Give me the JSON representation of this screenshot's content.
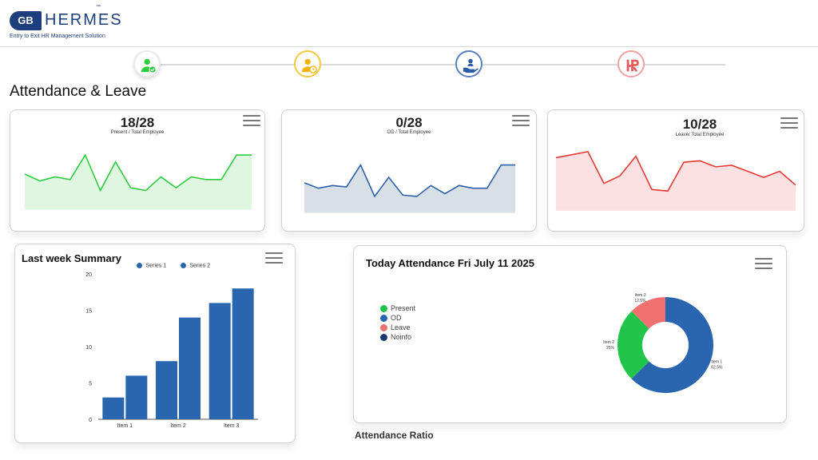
{
  "brand": {
    "logo_badge": "GB",
    "logo_name": "HERMES",
    "trademark": "™",
    "tagline": "Entry to Exit HR Management Solution"
  },
  "stepper": {
    "steps": [
      {
        "icon": "user-check-icon",
        "color": "#2ecc40",
        "active": true
      },
      {
        "icon": "user-clock-icon",
        "color": "#f2c200",
        "active": false
      },
      {
        "icon": "hand-user-icon",
        "color": "#2a5aa8",
        "active": false
      },
      {
        "icon": "hr-logo-icon",
        "color": "#e45c5c",
        "active": false
      }
    ]
  },
  "page_title": "Attendance & Leave",
  "stat_cards": [
    {
      "value": "18/28",
      "label": "Present / Total Employee",
      "color": "#2ecc40",
      "fill": "#dff6e1",
      "series": [
        66,
        61,
        64,
        62,
        80,
        54,
        75,
        56,
        54,
        64,
        56,
        64,
        62,
        62,
        80,
        80
      ]
    },
    {
      "value": "0/28",
      "label": "OD / Total Employee",
      "color": "#2e62a8",
      "fill": "#d9dfe6",
      "series": [
        62,
        58,
        60,
        59,
        75,
        52,
        66,
        53,
        52,
        60,
        54,
        60,
        58,
        58,
        75,
        75
      ]
    },
    {
      "value": "10/28",
      "label": "Leave/ Total Employee",
      "color": "#e53935",
      "fill": "#fbe1e1",
      "series": [
        75,
        77,
        79,
        58,
        63,
        76,
        54,
        53,
        72,
        73,
        69,
        70,
        66,
        62,
        66,
        57
      ]
    }
  ],
  "last_week": {
    "title": "Last week Summary",
    "legend": [
      {
        "name": "Series 1",
        "color": "#2a66b0"
      },
      {
        "name": "Series 2",
        "color": "#2a66b0"
      }
    ]
  },
  "today": {
    "title": "Today Attendance Fri July 11 2025",
    "legend": [
      {
        "label": "Present",
        "color": "#1fc24a"
      },
      {
        "label": "OD",
        "color": "#2a66b0"
      },
      {
        "label": "Leave",
        "color": "#f07070"
      },
      {
        "label": "Noinfo",
        "color": "#163b6e"
      }
    ],
    "slice_labels": [
      {
        "name": "Item 1",
        "pct": "62.5%"
      },
      {
        "name": "Item 2",
        "pct": "25%"
      },
      {
        "name": "Item 3",
        "pct": "12.5%"
      }
    ]
  },
  "ratio_title": "Attendance Ratio",
  "chart_data": [
    {
      "type": "bar",
      "categories": [
        "Item 1",
        "Item 2",
        "Item 3"
      ],
      "series": [
        {
          "name": "Series 1",
          "values": [
            3,
            8,
            16
          ]
        },
        {
          "name": "Series 2",
          "values": [
            6,
            14,
            18
          ]
        }
      ],
      "ylim": [
        0,
        20
      ],
      "yticks": [
        "0",
        "5",
        "10",
        "15",
        "20"
      ],
      "colors": [
        "#2a66b0",
        "#2a66b0"
      ]
    },
    {
      "type": "pie",
      "donut": true,
      "categories": [
        "Item 1",
        "Item 2",
        "Item 3"
      ],
      "values": [
        62.5,
        25,
        12.5
      ],
      "colors": [
        "#2a66b0",
        "#22c54b",
        "#f07070"
      ]
    }
  ]
}
